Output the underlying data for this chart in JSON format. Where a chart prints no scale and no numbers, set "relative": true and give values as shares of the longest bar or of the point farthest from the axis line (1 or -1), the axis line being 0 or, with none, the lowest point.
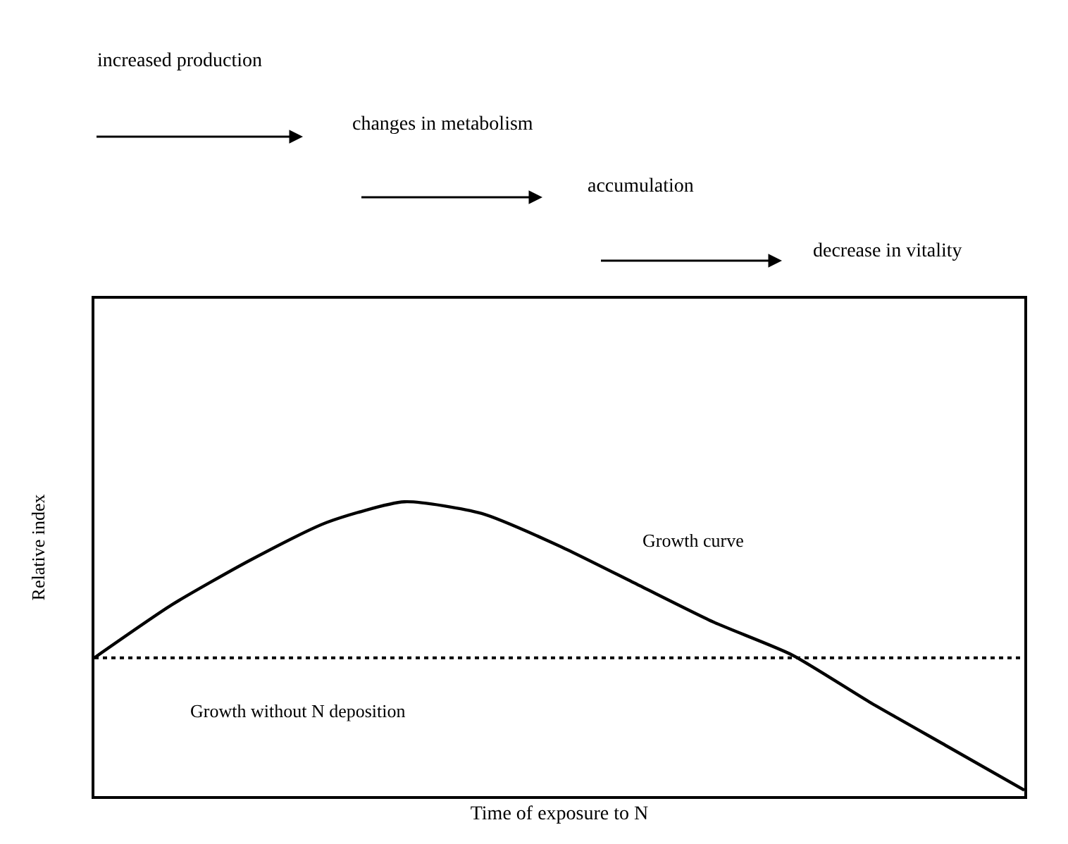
{
  "chart_data": {
    "type": "line",
    "relative": true,
    "xlabel": "Time of exposure to N",
    "ylabel": "Relative index",
    "categories": [
      null,
      null,
      null,
      null,
      null,
      null,
      null,
      null,
      null,
      null,
      null,
      null,
      null
    ],
    "series": [
      {
        "name": "Growth curve",
        "color": "#000000",
        "values": [
          0.47,
          0.65,
          0.8,
          0.93,
          1.0,
          0.96,
          0.85,
          0.72,
          0.59,
          0.48,
          0.32,
          0.17,
          0.02
        ]
      }
    ],
    "ref_lines": [
      {
        "axis": "y",
        "value": 0.47,
        "label": "Growth without N deposition",
        "color": "#000000",
        "line_style": "dotted"
      }
    ],
    "annotations": [
      "increased production",
      "changes in metabolism",
      "accumulation",
      "decrease in vitality"
    ],
    "marker": "none",
    "line_style": "solid",
    "legend": false
  }
}
